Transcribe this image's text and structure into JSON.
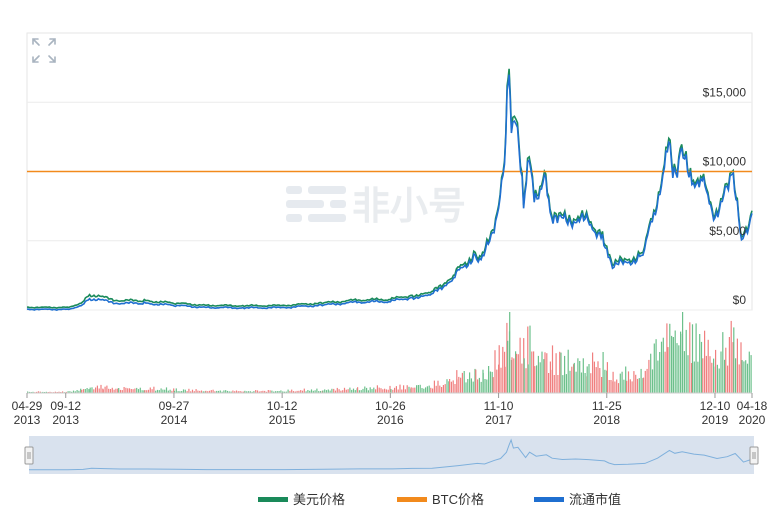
{
  "chart_data": {
    "type": "line",
    "x": [
      "2013-04-29",
      "2013-06-15",
      "2013-09-12",
      "2013-11-05",
      "2013-12-05",
      "2014-01-20",
      "2014-03-15",
      "2014-06-15",
      "2014-09-27",
      "2015-01-15",
      "2015-06-01",
      "2015-10-12",
      "2016-03-01",
      "2016-07-01",
      "2016-10-26",
      "2017-01-05",
      "2017-03-15",
      "2017-05-20",
      "2017-06-15",
      "2017-08-20",
      "2017-09-15",
      "2017-10-20",
      "2017-11-10",
      "2017-12-01",
      "2017-12-10",
      "2017-12-17",
      "2017-12-25",
      "2018-01-10",
      "2018-02-06",
      "2018-02-20",
      "2018-03-15",
      "2018-04-20",
      "2018-05-10",
      "2018-06-15",
      "2018-08-01",
      "2018-09-15",
      "2018-11-10",
      "2018-11-25",
      "2018-12-15",
      "2019-02-01",
      "2019-04-01",
      "2019-05-15",
      "2019-06-26",
      "2019-07-15",
      "2019-08-10",
      "2019-09-20",
      "2019-10-26",
      "2019-12-10",
      "2020-01-15",
      "2020-02-12",
      "2020-03-12",
      "2020-04-18"
    ],
    "series": [
      {
        "name": "美元价格",
        "color": "#1a8a5a",
        "values": [
          140,
          110,
          125,
          350,
          1050,
          850,
          620,
          600,
          430,
          270,
          230,
          250,
          430,
          650,
          700,
          990,
          1100,
          2200,
          2700,
          4100,
          3700,
          6000,
          7100,
          11000,
          15500,
          18500,
          13500,
          14000,
          7700,
          11000,
          8500,
          9400,
          7300,
          6500,
          6800,
          6400,
          5600,
          4300,
          3300,
          3500,
          4100,
          7300,
          12100,
          10300,
          11200,
          9800,
          9200,
          7100,
          8200,
          10200,
          4900,
          7100
        ]
      },
      {
        "name": "BTC价格",
        "color": "#f28a1c",
        "values": [
          1,
          1,
          1,
          1,
          1,
          1,
          1,
          1,
          1,
          1,
          1,
          1,
          1,
          1,
          1,
          1,
          1,
          1,
          1,
          1,
          1,
          1,
          1,
          1,
          1,
          1,
          1,
          1,
          1,
          1,
          1,
          1,
          1,
          1,
          1,
          1,
          1,
          1,
          1,
          1,
          1,
          1,
          1,
          1,
          1,
          1,
          1,
          1,
          1,
          1,
          1,
          1
        ]
      },
      {
        "name": "流通市值",
        "color": "#1f6fd0",
        "values": [
          140,
          110,
          125,
          320,
          900,
          760,
          560,
          560,
          410,
          260,
          225,
          245,
          420,
          640,
          690,
          970,
          1080,
          2150,
          2650,
          4050,
          3650,
          5950,
          7050,
          10900,
          15300,
          18200,
          13300,
          13800,
          7600,
          10900,
          8400,
          9300,
          7250,
          6450,
          6750,
          6350,
          5550,
          4250,
          3250,
          3450,
          4050,
          7250,
          11950,
          10200,
          11100,
          9750,
          9150,
          7050,
          8150,
          10150,
          4850,
          7050
        ]
      }
    ],
    "xticks": [
      {
        "date": "2013-04-29",
        "label": "04-29",
        "year": "2013"
      },
      {
        "date": "2013-09-12",
        "label": "09-12",
        "year": "2013"
      },
      {
        "date": "2014-09-27",
        "label": "09-27",
        "year": "2014"
      },
      {
        "date": "2015-10-12",
        "label": "10-12",
        "year": "2015"
      },
      {
        "date": "2016-10-26",
        "label": "10-26",
        "year": "2016"
      },
      {
        "date": "2017-11-10",
        "label": "11-10",
        "year": "2017"
      },
      {
        "date": "2018-11-25",
        "label": "11-25",
        "year": "2018"
      },
      {
        "date": "2019-12-10",
        "label": "12-10",
        "year": "2019"
      },
      {
        "date": "2020-04-18",
        "label": "04-18",
        "year": "2020"
      }
    ],
    "yticks": [
      {
        "value": 0,
        "label": "$0"
      },
      {
        "value": 5000,
        "label": "$5,000"
      },
      {
        "value": 10000,
        "label": "$10,000"
      },
      {
        "value": 15000,
        "label": "$15,000"
      }
    ],
    "ylim": [
      0,
      20000
    ],
    "btc_level": 10000,
    "grid": true,
    "legend_position": "bottom-center",
    "has_volume_panel": true,
    "has_navigator": true,
    "watermark": "非小号",
    "colors": {
      "usd": "#1a8a5a",
      "btc": "#f28a1c",
      "cap": "#1f6fd0",
      "vol_up": "#6cc08b",
      "vol_down": "#f07f7f",
      "navigator_fill": "#d7e1ee",
      "navigator_line": "#7aaad6"
    }
  },
  "legend": [
    {
      "label": "美元价格",
      "color": "#1a8a5a"
    },
    {
      "label": "BTC价格",
      "color": "#f28a1c"
    },
    {
      "label": "流通市值",
      "color": "#1f6fd0"
    }
  ]
}
